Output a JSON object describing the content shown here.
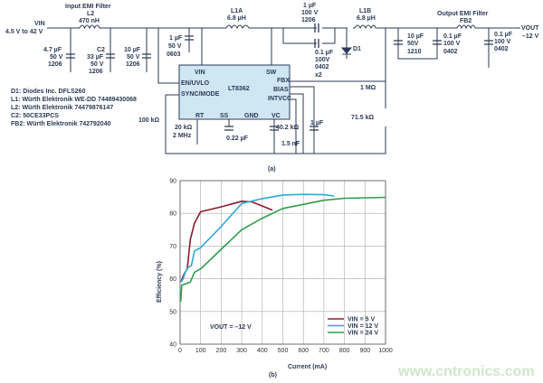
{
  "schematic": {
    "vin_label": "VIN",
    "vin_range": "4.5 V to 42 V",
    "input_filter_title": "Input EMI Filter",
    "l2": [
      "L2",
      "470 nH"
    ],
    "c_in1": [
      "4.7 µF",
      "50 V",
      "1206"
    ],
    "c2": [
      "C2",
      "33 µF",
      "50 V",
      "1206"
    ],
    "c_in3": [
      "10 µF",
      "50 V",
      "1206"
    ],
    "c_in4": [
      "1 µF",
      "50 V",
      "0603"
    ],
    "l1a": [
      "L1A",
      "6.8 µH"
    ],
    "c_coupling": [
      "1 µF",
      "100 V",
      "1206"
    ],
    "c_coupling2": [
      "0.1 µF",
      "100V",
      "0402",
      "x2"
    ],
    "l1b": [
      "L1B",
      "6.8 µH"
    ],
    "d1": "D1",
    "c_out1": [
      "10 µF",
      "50V",
      "1210"
    ],
    "c_out2": [
      "0.1 µF",
      "100 V",
      "0402"
    ],
    "output_filter_title": "Output EMI Filter",
    "fb2": "FB2",
    "c_out3": [
      "0.1 µF",
      "100 V",
      "0402"
    ],
    "vout_label": "VOUT",
    "vout_value": "–12 V",
    "ic": {
      "name": "LT8362",
      "pins": [
        "VIN",
        "SW",
        "EN/UVLO",
        "SYNC/MODE",
        "FBX",
        "BIAS",
        "INTVCC",
        "RT",
        "SS",
        "GND",
        "VC"
      ]
    },
    "r_sync": "100 kΩ",
    "r_t": [
      "20 kΩ",
      "2 MHz"
    ],
    "c_ss": "0.22 µF",
    "r_c": "40.2 kΩ",
    "c_c": "1.5 nF",
    "c_intvcc": "1 µF",
    "r_fb1": "1 MΩ",
    "r_fb2": "71.5 kΩ",
    "bom": [
      "D1: Diodes Inc. DFLS260",
      "L1: Würth Elektronik WE-DD 74489430068",
      "L2: Würth Elektronik 74479876147",
      "C2: 50CE33PCS",
      "FB2: Würth Elektronik 742792040"
    ],
    "caption": "(a)"
  },
  "chart_data": {
    "type": "line",
    "xlabel": "Current (mA)",
    "ylabel": "Efficiency (%)",
    "xlim": [
      0,
      1000
    ],
    "ylim": [
      40,
      90
    ],
    "xticks": [
      0,
      100,
      200,
      300,
      400,
      500,
      600,
      700,
      800,
      900,
      1000
    ],
    "yticks": [
      40,
      50,
      60,
      70,
      80,
      90
    ],
    "grid": true,
    "legend_position": "bottom-right",
    "annotation": "VOUT = –12 V",
    "caption": "(b)",
    "series": [
      {
        "name": "VIN = 5 V",
        "color": "#8b1a2e",
        "x": [
          5,
          10,
          20,
          35,
          50,
          70,
          100,
          200,
          300,
          350,
          450
        ],
        "y": [
          59,
          60,
          61.5,
          63,
          72,
          77,
          80.5,
          82,
          83.7,
          83.5,
          81
        ]
      },
      {
        "name": "VIN = 12 V",
        "color": "#2fa8d8",
        "x": [
          5,
          15,
          25,
          40,
          55,
          70,
          100,
          200,
          300,
          400,
          500,
          600,
          700,
          750
        ],
        "y": [
          59,
          60,
          62,
          63.5,
          64,
          68.5,
          69.5,
          76,
          83,
          84.5,
          85.6,
          85.8,
          85.7,
          85.3
        ]
      },
      {
        "name": "VIN = 24 V",
        "color": "#2e9e4a",
        "x": [
          3,
          8,
          30,
          50,
          70,
          100,
          200,
          300,
          400,
          500,
          700,
          800,
          1000
        ],
        "y": [
          53,
          58,
          58.5,
          59,
          62,
          63,
          69,
          75,
          78.5,
          81.5,
          84,
          84.6,
          84.9
        ]
      }
    ]
  },
  "watermark": "www.cntronics.com"
}
